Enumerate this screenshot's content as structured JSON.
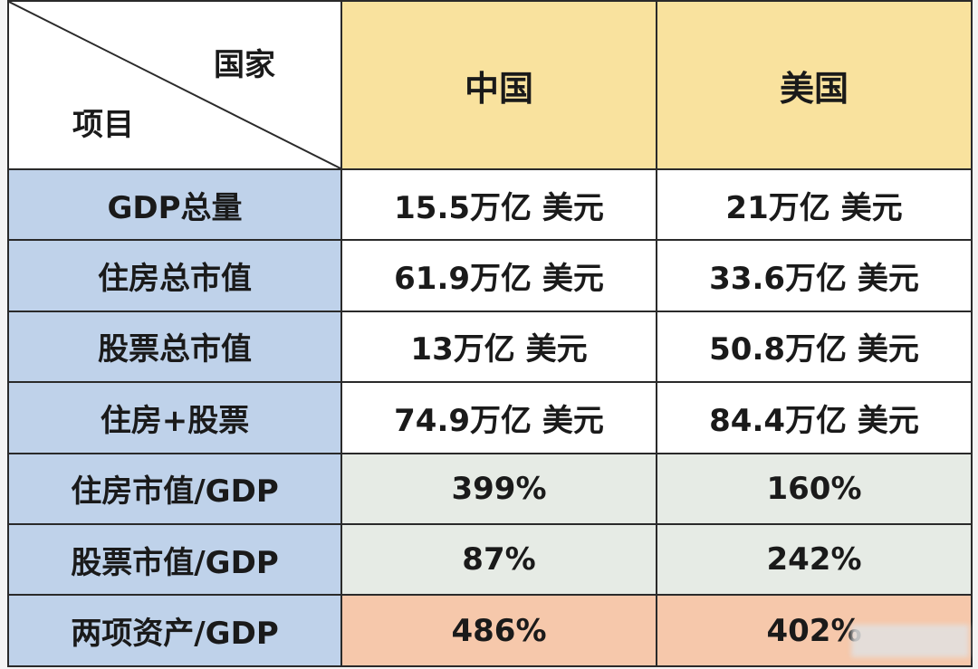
{
  "chart_data": {
    "type": "table",
    "header": {
      "corner_top": "国家",
      "corner_bottom": "项目",
      "columns": [
        "中国",
        "美国"
      ]
    },
    "rows": [
      {
        "label": "GDP总量",
        "values": [
          "15.5万亿 美元",
          "21万亿 美元"
        ]
      },
      {
        "label": "住房总市值",
        "values": [
          "61.9万亿 美元",
          "33.6万亿 美元"
        ]
      },
      {
        "label": "股票总市值",
        "values": [
          "13万亿 美元",
          "50.8万亿 美元"
        ]
      },
      {
        "label": "住房+股票",
        "values": [
          "74.9万亿 美元",
          "84.4万亿 美元"
        ]
      },
      {
        "label": "住房市值/GDP",
        "values": [
          "399%",
          "160%"
        ]
      },
      {
        "label": "股票市值/GDP",
        "values": [
          "87%",
          "242%"
        ]
      },
      {
        "label": "两项资产/GDP",
        "values": [
          "486%",
          "402%"
        ]
      }
    ],
    "colors": {
      "header_country": "#f9e29e",
      "row_label": "#bfd2ea",
      "value_cell": "#ffffff",
      "ratio_cell": "#e6ebe5",
      "total_ratio_cell": "#f6c8ab"
    }
  }
}
